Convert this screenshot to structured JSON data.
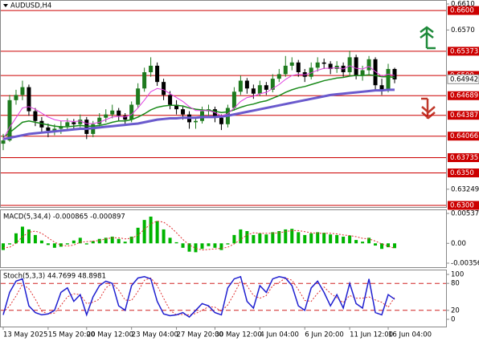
{
  "chart_data": [
    {
      "type": "candlestick",
      "title": "AUDUSD,H4",
      "ylim": [
        0.63,
        0.661
      ],
      "yticks": [
        {
          "value": 0.661,
          "label": "0.6610"
        },
        {
          "value": 0.657,
          "label": "0.6570"
        },
        0.63249
      ],
      "levels": [
        {
          "value": 0.66,
          "label": "0.6600"
        },
        0.65373,
        {
          "value": 0.65,
          "label": "0.6500"
        },
        0.64689,
        0.64387,
        0.64066,
        0.63735,
        {
          "value": 0.635,
          "label": "0.6350"
        },
        {
          "value": 0.63,
          "label": "0.6300"
        }
      ],
      "level_color": "#cc0000",
      "last_price": 0.64942,
      "up_color": "#1e7a1e",
      "down_color": "#000000",
      "open": [
        0.6395,
        0.64,
        0.6462,
        0.647,
        0.6482,
        0.6445,
        0.643,
        0.642,
        0.6415,
        0.6418,
        0.6422,
        0.6428,
        0.6425,
        0.6432,
        0.641,
        0.6425,
        0.6435,
        0.644,
        0.6446,
        0.6438,
        0.6432,
        0.6455,
        0.648,
        0.6505,
        0.6515,
        0.649,
        0.647,
        0.6455,
        0.6448,
        0.644,
        0.6428,
        0.643,
        0.6445,
        0.6448,
        0.6435,
        0.6425,
        0.645,
        0.6475,
        0.6492,
        0.648,
        0.6472,
        0.6485,
        0.6478,
        0.6495,
        0.6502,
        0.6515,
        0.652,
        0.6505,
        0.6498,
        0.6512,
        0.652,
        0.6518,
        0.651,
        0.6515,
        0.6505,
        0.6528,
        0.65,
        0.6508,
        0.6525,
        0.6485,
        0.6478,
        0.651
      ],
      "high": [
        0.641,
        0.647,
        0.6478,
        0.6492,
        0.6486,
        0.645,
        0.6436,
        0.6426,
        0.6425,
        0.643,
        0.6434,
        0.6433,
        0.644,
        0.6436,
        0.643,
        0.6442,
        0.6448,
        0.6455,
        0.645,
        0.6442,
        0.646,
        0.6488,
        0.6512,
        0.6528,
        0.652,
        0.6495,
        0.6476,
        0.6462,
        0.6452,
        0.6445,
        0.6436,
        0.6452,
        0.6455,
        0.6452,
        0.644,
        0.6455,
        0.6482,
        0.65,
        0.6496,
        0.6486,
        0.6492,
        0.649,
        0.6502,
        0.651,
        0.653,
        0.6528,
        0.6524,
        0.651,
        0.652,
        0.6528,
        0.6526,
        0.6522,
        0.6522,
        0.652,
        0.6538,
        0.6532,
        0.6515,
        0.653,
        0.6528,
        0.6495,
        0.6518,
        0.6512
      ],
      "low": [
        0.6385,
        0.6398,
        0.6455,
        0.6462,
        0.6438,
        0.6422,
        0.6412,
        0.6405,
        0.6408,
        0.641,
        0.6415,
        0.6418,
        0.642,
        0.6402,
        0.6405,
        0.642,
        0.6428,
        0.6434,
        0.643,
        0.6424,
        0.6428,
        0.645,
        0.6475,
        0.6498,
        0.6484,
        0.6462,
        0.6448,
        0.644,
        0.6432,
        0.6418,
        0.6418,
        0.6426,
        0.6438,
        0.6428,
        0.6416,
        0.642,
        0.6446,
        0.647,
        0.6472,
        0.6464,
        0.6468,
        0.647,
        0.6474,
        0.649,
        0.6498,
        0.6508,
        0.6498,
        0.649,
        0.6494,
        0.6506,
        0.651,
        0.6502,
        0.6504,
        0.6498,
        0.65,
        0.6494,
        0.6492,
        0.65,
        0.6478,
        0.647,
        0.6474,
        0.6488
      ],
      "close": [
        0.64,
        0.6462,
        0.647,
        0.6482,
        0.6445,
        0.643,
        0.642,
        0.6415,
        0.6418,
        0.6422,
        0.6428,
        0.6425,
        0.6432,
        0.641,
        0.6425,
        0.6435,
        0.644,
        0.6446,
        0.6438,
        0.6432,
        0.6455,
        0.648,
        0.6505,
        0.6515,
        0.649,
        0.647,
        0.6455,
        0.6448,
        0.644,
        0.6428,
        0.643,
        0.6445,
        0.6448,
        0.6435,
        0.6425,
        0.645,
        0.6475,
        0.6492,
        0.648,
        0.6472,
        0.6485,
        0.6478,
        0.6495,
        0.6502,
        0.6515,
        0.652,
        0.6505,
        0.6498,
        0.6512,
        0.652,
        0.6518,
        0.651,
        0.6515,
        0.6505,
        0.6528,
        0.65,
        0.6508,
        0.6525,
        0.6485,
        0.6478,
        0.651,
        0.6494
      ],
      "moving_averages": [
        {
          "color": "#6a5acd",
          "width": 3,
          "values": [
            0.6402,
            0.6404,
            0.6406,
            0.6408,
            0.641,
            0.6411,
            0.6412,
            0.6413,
            0.6414,
            0.6415,
            0.6416,
            0.6417,
            0.6418,
            0.6418,
            0.6419,
            0.642,
            0.6421,
            0.6422,
            0.6423,
            0.6424,
            0.6425,
            0.6426,
            0.6428,
            0.643,
            0.6432,
            0.6433,
            0.6434,
            0.6434,
            0.6435,
            0.6435,
            0.6435,
            0.6436,
            0.6436,
            0.6436,
            0.6437,
            0.6438,
            0.644,
            0.6442,
            0.6444,
            0.6446,
            0.6448,
            0.645,
            0.6452,
            0.6454,
            0.6456,
            0.6458,
            0.646,
            0.6462,
            0.6464,
            0.6466,
            0.6468,
            0.647,
            0.6471,
            0.6472,
            0.6473,
            0.6474,
            0.6475,
            0.6476,
            0.6477,
            0.6477,
            0.6478,
            0.6478
          ]
        },
        {
          "color": "#1a8a1a",
          "width": 1.5,
          "values": [
            0.6405,
            0.6412,
            0.642,
            0.6428,
            0.643,
            0.6428,
            0.6426,
            0.6424,
            0.6422,
            0.6421,
            0.6421,
            0.6422,
            0.6423,
            0.6422,
            0.6422,
            0.6423,
            0.6425,
            0.6428,
            0.643,
            0.643,
            0.6432,
            0.6436,
            0.6441,
            0.6447,
            0.6451,
            0.6453,
            0.6454,
            0.6454,
            0.6453,
            0.645,
            0.6448,
            0.6447,
            0.6446,
            0.6445,
            0.6443,
            0.6444,
            0.6447,
            0.6451,
            0.6454,
            0.6456,
            0.6459,
            0.6461,
            0.6465,
            0.6469,
            0.6474,
            0.6478,
            0.6481,
            0.6483,
            0.6486,
            0.6489,
            0.6492,
            0.6494,
            0.6496,
            0.6497,
            0.6499,
            0.65,
            0.65,
            0.6501,
            0.65,
            0.6498,
            0.6498,
            0.6497
          ]
        },
        {
          "color": "#e040e0",
          "width": 1,
          "values": [
            0.6402,
            0.642,
            0.6435,
            0.645,
            0.6452,
            0.6448,
            0.6442,
            0.6436,
            0.6432,
            0.643,
            0.643,
            0.6429,
            0.643,
            0.6426,
            0.6426,
            0.6428,
            0.6432,
            0.6436,
            0.6437,
            0.6436,
            0.644,
            0.645,
            0.6462,
            0.6475,
            0.648,
            0.6478,
            0.6472,
            0.6466,
            0.646,
            0.6452,
            0.6446,
            0.6446,
            0.6446,
            0.6443,
            0.6438,
            0.6441,
            0.645,
            0.646,
            0.6466,
            0.6468,
            0.6472,
            0.6474,
            0.648,
            0.6486,
            0.6494,
            0.65,
            0.6502,
            0.6501,
            0.6504,
            0.6508,
            0.6511,
            0.6511,
            0.6512,
            0.651,
            0.6515,
            0.6511,
            0.651,
            0.6514,
            0.6506,
            0.6499,
            0.6502,
            0.65
          ]
        }
      ]
    },
    {
      "type": "bar",
      "title": "MACD(5,34,4) -0.000865 -0.000897",
      "ylim": [
        -0.003564,
        0.005373
      ],
      "yticks": [
        0.005373,
        {
          "value": 0,
          "label": "0.00"
        },
        -0.003564
      ],
      "color": "#00b400",
      "signal_color": "#e03030",
      "values": [
        -0.0012,
        -0.0002,
        0.0018,
        0.003,
        0.0025,
        0.0015,
        0.0005,
        -0.0003,
        -0.0008,
        -0.0006,
        -0.0002,
        0.0005,
        0.001,
        -0.0002,
        0.0004,
        0.0008,
        0.001,
        0.0012,
        0.0008,
        0.0003,
        0.0012,
        0.0028,
        0.0042,
        0.0048,
        0.004,
        0.0025,
        0.001,
        0.0002,
        -0.0008,
        -0.0015,
        -0.0016,
        -0.001,
        -0.0005,
        -0.0008,
        -0.0012,
        -0.0002,
        0.0015,
        0.0025,
        0.0022,
        0.0015,
        0.0018,
        0.0016,
        0.002,
        0.0022,
        0.0025,
        0.0026,
        0.002,
        0.0015,
        0.0018,
        0.002,
        0.0019,
        0.0016,
        0.0015,
        0.0012,
        0.0014,
        0.0006,
        0.0003,
        0.001,
        -0.0004,
        -0.001,
        -0.0007,
        -0.000865
      ],
      "signal_values": [
        -0.0008,
        -0.0007,
        0.0,
        0.0012,
        0.002,
        0.0022,
        0.0018,
        0.001,
        0.0002,
        -0.0003,
        -0.0005,
        -0.0003,
        0.0002,
        0.0003,
        0.0004,
        0.0005,
        0.0008,
        0.001,
        0.001,
        0.0008,
        0.0009,
        0.0015,
        0.0025,
        0.0035,
        0.004,
        0.0038,
        0.003,
        0.0019,
        0.0007,
        -0.0003,
        -0.0009,
        -0.0012,
        -0.0011,
        -0.001,
        -0.0009,
        -0.0007,
        -0.0001,
        0.0007,
        0.0015,
        0.0019,
        0.0018,
        0.0018,
        0.0018,
        0.0019,
        0.0021,
        0.0023,
        0.0023,
        0.0021,
        0.0019,
        0.0018,
        0.0018,
        0.0018,
        0.0017,
        0.0015,
        0.0014,
        0.0012,
        0.0009,
        0.0008,
        0.0004,
        -0.0001,
        -0.0005,
        -0.000897
      ]
    },
    {
      "type": "line",
      "title": "Stoch(5,3,3) 44.7699 48.8981",
      "ylim": [
        0,
        100
      ],
      "yticks": [
        100,
        80,
        20,
        0
      ],
      "k_color": "#1f1fd0",
      "d_color": "#e03030",
      "level_color": "#d02020",
      "k_values": [
        10,
        60,
        85,
        90,
        30,
        15,
        10,
        12,
        20,
        60,
        70,
        40,
        55,
        10,
        50,
        75,
        85,
        80,
        30,
        20,
        75,
        92,
        95,
        90,
        40,
        12,
        8,
        10,
        15,
        5,
        20,
        35,
        30,
        15,
        10,
        70,
        90,
        95,
        40,
        25,
        75,
        60,
        90,
        95,
        92,
        75,
        30,
        20,
        70,
        85,
        60,
        30,
        55,
        25,
        80,
        35,
        25,
        90,
        15,
        10,
        55,
        44.7699
      ],
      "d_values": [
        15,
        30,
        52,
        78,
        68,
        45,
        18,
        12,
        14,
        31,
        50,
        57,
        55,
        35,
        38,
        45,
        70,
        80,
        65,
        43,
        42,
        62,
        87,
        92,
        75,
        47,
        20,
        10,
        11,
        10,
        13,
        20,
        28,
        27,
        18,
        32,
        57,
        85,
        75,
        53,
        47,
        53,
        75,
        82,
        92,
        87,
        66,
        42,
        40,
        58,
        72,
        58,
        48,
        37,
        53,
        47,
        47,
        50,
        43,
        38,
        27,
        48.8981
      ],
      "categories": [
        "13 May 2025",
        null,
        null,
        null,
        null,
        null,
        null,
        "15 May 20:00",
        null,
        null,
        null,
        null,
        null,
        "20 May 12:00",
        null,
        null,
        null,
        null,
        null,
        null,
        "23 May 04:00",
        null,
        null,
        null,
        null,
        null,
        null,
        "27 May 20:00",
        null,
        null,
        null,
        null,
        null,
        "30 May 12:00",
        null,
        null,
        null,
        null,
        null,
        null,
        "4 Jun 04:00",
        null,
        null,
        null,
        null,
        null,
        null,
        "6 Jun 20:00",
        null,
        null,
        null,
        null,
        null,
        null,
        "11 Jun 12:00",
        null,
        null,
        null,
        null,
        null,
        "16 Jun 04:00",
        null
      ]
    }
  ]
}
